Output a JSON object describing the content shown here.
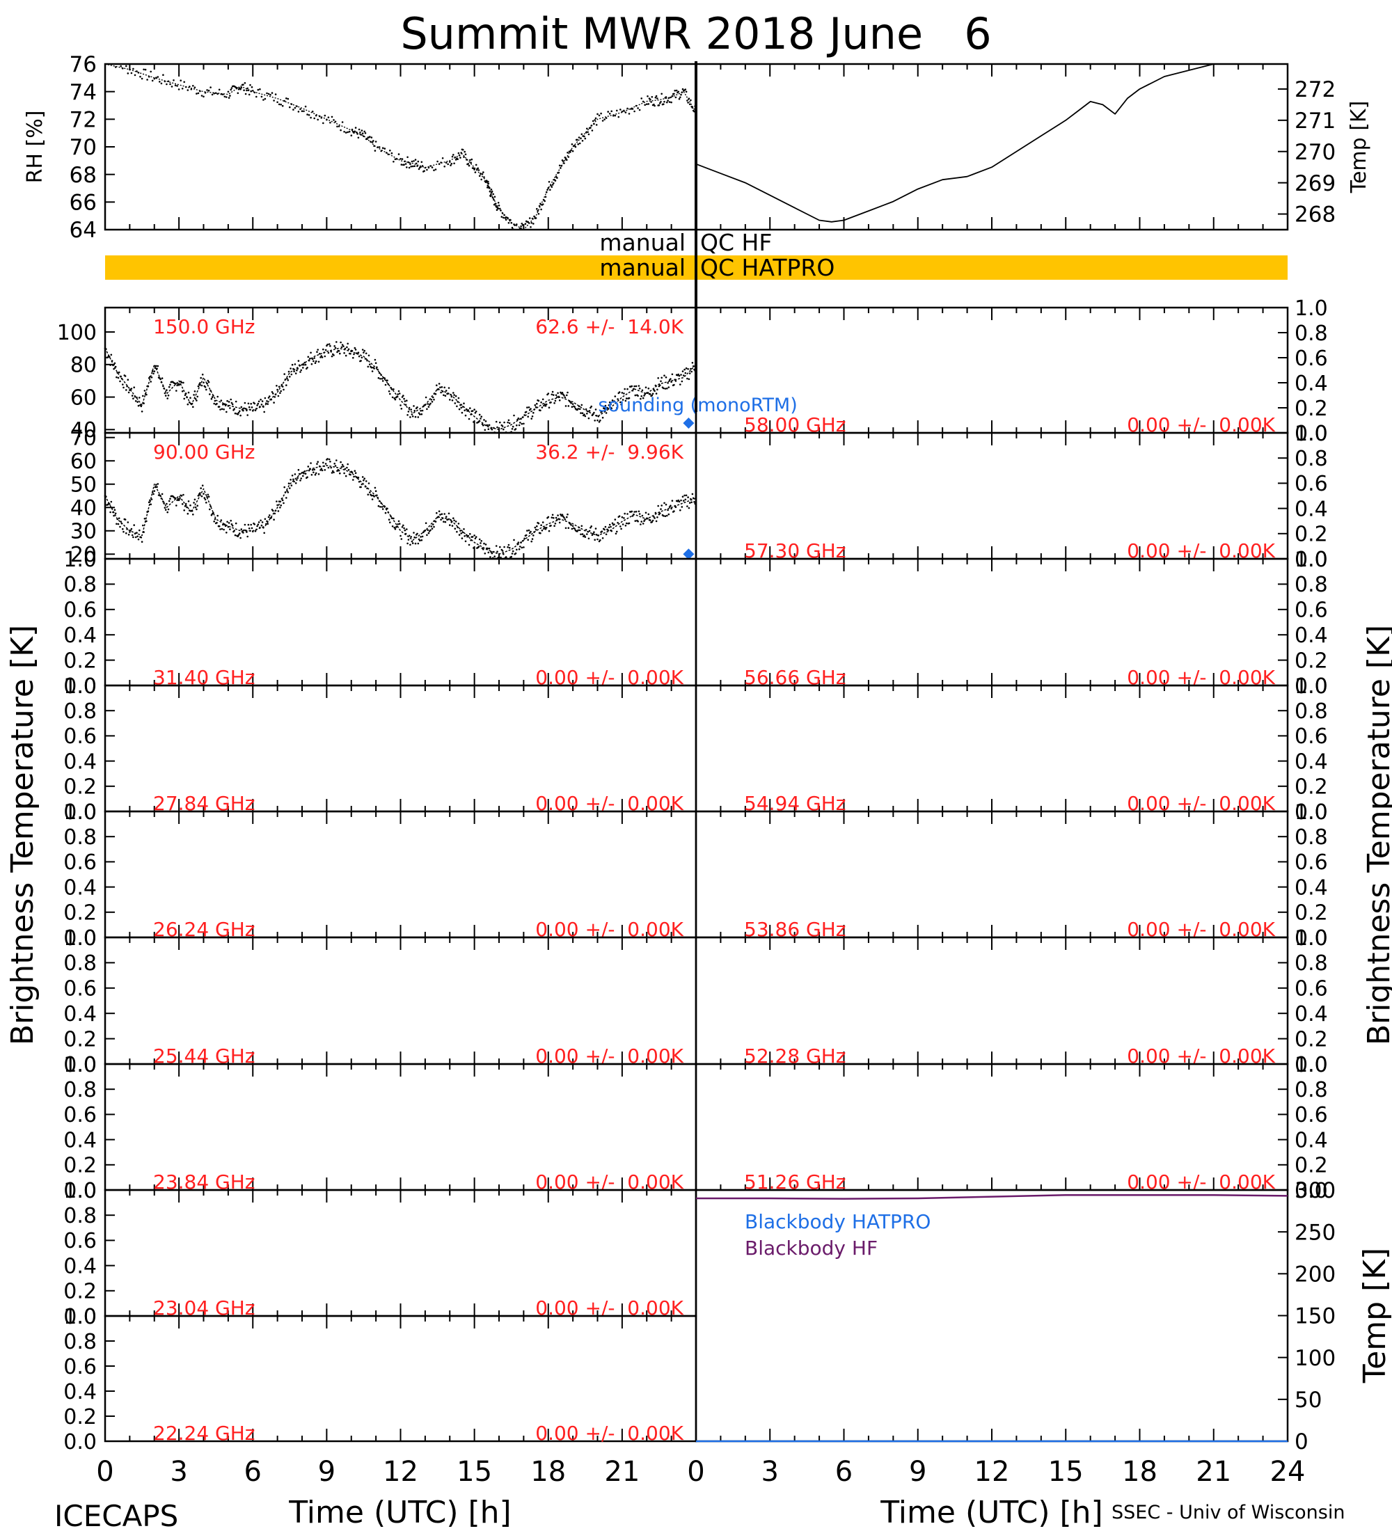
{
  "title": "Summit MWR 2018 June   6",
  "footer": {
    "left_label": "ICECAPS",
    "right_label": "SSEC - Univ of Wisconsin"
  },
  "time_axis": {
    "label": "Time (UTC) [h]",
    "range": [
      0,
      24
    ],
    "ticks": [
      "0",
      "3",
      "6",
      "9",
      "12",
      "15",
      "18",
      "21",
      "24"
    ],
    "left_ticks": [
      "0",
      "3",
      "6",
      "9",
      "12",
      "15",
      "18",
      "21"
    ]
  },
  "qc": {
    "hf_label": "manual QC HF",
    "hf_left": "manual",
    "hf_right": "QC HF",
    "hatpro_label": "manual QC HATPRO",
    "hatpro_left": "manual",
    "hatpro_right": "QC HATPRO",
    "hatpro_color": "#FFC400"
  },
  "colors": {
    "red_label": "#FF2020",
    "sounding": "#1E6FE6",
    "blackbody_hatpro": "#1E6FE6",
    "blackbody_hf": "#6A1B6A",
    "data": "#000000"
  },
  "side_labels": {
    "tb_left": "Brightness Temperature [K]",
    "tb_right": "Brightness Temperature [K]"
  },
  "chart_data": [
    {
      "type": "scatter",
      "panel": "rh",
      "ylabel": "RH [%]",
      "ylim": [
        64,
        76
      ],
      "yticks": [
        "64",
        "66",
        "68",
        "70",
        "72",
        "74",
        "76"
      ],
      "x": [
        0,
        1,
        2,
        3,
        4,
        5,
        5.5,
        6,
        7,
        8,
        9,
        10,
        10.5,
        11,
        12,
        12.5,
        13,
        14,
        14.5,
        15,
        15.5,
        15.7,
        16,
        16.5,
        17,
        17.5,
        18,
        18.5,
        19,
        19.5,
        20,
        21,
        22,
        22.5,
        23,
        23.5,
        24
      ],
      "y": [
        76.5,
        75.6,
        75.0,
        74.5,
        74.0,
        73.8,
        74.4,
        74.0,
        73.5,
        72.8,
        72.0,
        71.2,
        70.8,
        70.0,
        69.0,
        68.8,
        68.5,
        69.0,
        69.5,
        68.5,
        67.5,
        66.5,
        65.5,
        64.5,
        64.0,
        65.0,
        67.0,
        68.5,
        70.0,
        71.0,
        72.0,
        72.5,
        73.3,
        73.4,
        73.6,
        74.0,
        72.5
      ]
    },
    {
      "type": "line",
      "panel": "temp",
      "ylabel": "Temp [K]",
      "ylim": [
        267.5,
        272.8
      ],
      "yticks": [
        "268",
        "269",
        "270",
        "271",
        "272"
      ],
      "x": [
        0,
        1,
        2,
        3,
        4,
        5,
        5.5,
        6,
        7,
        8,
        9,
        10,
        11,
        12,
        13,
        14,
        15,
        15.5,
        16,
        16.5,
        17,
        17.5,
        18,
        19,
        20,
        21,
        22,
        23,
        24
      ],
      "y": [
        269.6,
        269.3,
        269.0,
        268.6,
        268.2,
        267.8,
        267.75,
        267.8,
        268.1,
        268.4,
        268.8,
        269.1,
        269.2,
        269.5,
        270.0,
        270.5,
        271.0,
        271.3,
        271.6,
        271.5,
        271.2,
        271.7,
        272.0,
        272.4,
        272.6,
        272.8,
        272.9,
        272.8,
        272.8
      ]
    },
    {
      "type": "scatter",
      "panel": "tb",
      "column": "left",
      "frequency": "150.0 GHz",
      "stat": "62.6 +/-  14.0K",
      "ylim": [
        38,
        115
      ],
      "yticks": [
        "40",
        "60",
        "80",
        "100"
      ],
      "sounding_label": "sounding (monoRTM)",
      "sounding_value": 44,
      "x": [
        0,
        0.5,
        1,
        1.5,
        2,
        2.5,
        3,
        3.5,
        4,
        4.5,
        5,
        5.5,
        6,
        6.5,
        7,
        7.5,
        8,
        8.5,
        9,
        9.5,
        10,
        10.5,
        11,
        11.5,
        12,
        12.5,
        13,
        13.5,
        14,
        14.5,
        15,
        15.5,
        16,
        16.5,
        17,
        17.5,
        18,
        18.5,
        19,
        19.5,
        20,
        20.5,
        21,
        21.5,
        22,
        22.5,
        23,
        23.5,
        24
      ],
      "values": [
        90,
        75,
        65,
        55,
        80,
        62,
        70,
        55,
        72,
        58,
        55,
        53,
        52,
        55,
        63,
        75,
        80,
        85,
        88,
        90,
        88,
        85,
        78,
        68,
        58,
        50,
        55,
        65,
        62,
        55,
        48,
        42,
        40,
        43,
        48,
        53,
        58,
        60,
        57,
        52,
        48,
        53,
        60,
        65,
        62,
        68,
        70,
        72,
        80
      ]
    },
    {
      "type": "scatter",
      "panel": "tb",
      "column": "left",
      "frequency": "90.00 GHz",
      "stat": "36.2 +/-  9.96K",
      "ylim": [
        18,
        72
      ],
      "yticks": [
        "20",
        "30",
        "40",
        "50",
        "60",
        "70"
      ],
      "sounding_value": 20,
      "x": [
        0,
        0.5,
        1,
        1.5,
        2,
        2.5,
        3,
        3.5,
        4,
        4.5,
        5,
        5.5,
        6,
        6.5,
        7,
        7.5,
        8,
        8.5,
        9,
        9.5,
        10,
        10.5,
        11,
        11.5,
        12,
        12.5,
        13,
        13.5,
        14,
        14.5,
        15,
        15.5,
        16,
        16.5,
        17,
        17.5,
        18,
        18.5,
        19,
        19.5,
        20,
        20.5,
        21,
        21.5,
        22,
        22.5,
        23,
        23.5,
        24
      ],
      "values": [
        45,
        35,
        30,
        28,
        50,
        40,
        45,
        38,
        48,
        35,
        32,
        30,
        30,
        32,
        40,
        50,
        55,
        57,
        58,
        57,
        55,
        50,
        45,
        38,
        30,
        26,
        30,
        36,
        35,
        30,
        25,
        22,
        20,
        22,
        26,
        30,
        33,
        35,
        33,
        30,
        28,
        30,
        34,
        37,
        35,
        38,
        40,
        42,
        44
      ]
    },
    {
      "type": "scatter",
      "panel": "tb",
      "column": "left",
      "frequency": "31.40 GHz",
      "stat": "0.00 +/-  0.00K",
      "ylim": [
        0,
        1
      ],
      "yticks": [
        "0.0",
        "0.2",
        "0.4",
        "0.6",
        "0.8",
        "1.0"
      ],
      "values": []
    },
    {
      "type": "scatter",
      "panel": "tb",
      "column": "left",
      "frequency": "27.84 GHz",
      "stat": "0.00 +/-  0.00K",
      "ylim": [
        0,
        1
      ],
      "yticks": [
        "0.0",
        "0.2",
        "0.4",
        "0.6",
        "0.8",
        "1.0"
      ],
      "values": []
    },
    {
      "type": "scatter",
      "panel": "tb",
      "column": "left",
      "frequency": "26.24 GHz",
      "stat": "0.00 +/-  0.00K",
      "ylim": [
        0,
        1
      ],
      "yticks": [
        "0.0",
        "0.2",
        "0.4",
        "0.6",
        "0.8",
        "1.0"
      ],
      "values": []
    },
    {
      "type": "scatter",
      "panel": "tb",
      "column": "left",
      "frequency": "25.44 GHz",
      "stat": "0.00 +/-  0.00K",
      "ylim": [
        0,
        1
      ],
      "yticks": [
        "0.0",
        "0.2",
        "0.4",
        "0.6",
        "0.8",
        "1.0"
      ],
      "values": []
    },
    {
      "type": "scatter",
      "panel": "tb",
      "column": "left",
      "frequency": "23.84 GHz",
      "stat": "0.00 +/-  0.00K",
      "ylim": [
        0,
        1
      ],
      "yticks": [
        "0.0",
        "0.2",
        "0.4",
        "0.6",
        "0.8",
        "1.0"
      ],
      "values": []
    },
    {
      "type": "scatter",
      "panel": "tb",
      "column": "left",
      "frequency": "23.04 GHz",
      "stat": "0.00 +/-  0.00K",
      "ylim": [
        0,
        1
      ],
      "yticks": [
        "0.0",
        "0.2",
        "0.4",
        "0.6",
        "0.8",
        "1.0"
      ],
      "values": []
    },
    {
      "type": "scatter",
      "panel": "tb",
      "column": "left",
      "frequency": "22.24 GHz",
      "stat": "0.00 +/-  0.00K",
      "ylim": [
        0,
        1
      ],
      "yticks": [
        "0.0",
        "0.2",
        "0.4",
        "0.6",
        "0.8",
        "1.0"
      ],
      "values": []
    },
    {
      "type": "scatter",
      "panel": "tb",
      "column": "right",
      "frequency": "58.00 GHz",
      "stat": "0.00 +/-  0.00K",
      "ylim": [
        0,
        1
      ],
      "yticks": [
        "0.0",
        "0.2",
        "0.4",
        "0.6",
        "0.8",
        "1.0"
      ],
      "values": []
    },
    {
      "type": "scatter",
      "panel": "tb",
      "column": "right",
      "frequency": "57.30 GHz",
      "stat": "0.00 +/-  0.00K",
      "ylim": [
        0,
        1
      ],
      "yticks": [
        "0.0",
        "0.2",
        "0.4",
        "0.6",
        "0.8",
        "1.0"
      ],
      "values": []
    },
    {
      "type": "scatter",
      "panel": "tb",
      "column": "right",
      "frequency": "56.66 GHz",
      "stat": "0.00 +/-  0.00K",
      "ylim": [
        0,
        1
      ],
      "yticks": [
        "0.0",
        "0.2",
        "0.4",
        "0.6",
        "0.8",
        "1.0"
      ],
      "values": []
    },
    {
      "type": "scatter",
      "panel": "tb",
      "column": "right",
      "frequency": "54.94 GHz",
      "stat": "0.00 +/-  0.00K",
      "ylim": [
        0,
        1
      ],
      "yticks": [
        "0.0",
        "0.2",
        "0.4",
        "0.6",
        "0.8",
        "1.0"
      ],
      "values": []
    },
    {
      "type": "scatter",
      "panel": "tb",
      "column": "right",
      "frequency": "53.86 GHz",
      "stat": "0.00 +/-  0.00K",
      "ylim": [
        0,
        1
      ],
      "yticks": [
        "0.0",
        "0.2",
        "0.4",
        "0.6",
        "0.8",
        "1.0"
      ],
      "values": []
    },
    {
      "type": "scatter",
      "panel": "tb",
      "column": "right",
      "frequency": "52.28 GHz",
      "stat": "0.00 +/-  0.00K",
      "ylim": [
        0,
        1
      ],
      "yticks": [
        "0.0",
        "0.2",
        "0.4",
        "0.6",
        "0.8",
        "1.0"
      ],
      "values": []
    },
    {
      "type": "scatter",
      "panel": "tb",
      "column": "right",
      "frequency": "51.26 GHz",
      "stat": "0.00 +/-  0.00K",
      "ylim": [
        0,
        1
      ],
      "yticks": [
        "0.0",
        "0.2",
        "0.4",
        "0.6",
        "0.8",
        "1.0"
      ],
      "values": []
    },
    {
      "type": "line",
      "panel": "blackbody",
      "ylabel": "Temp [K]",
      "ylim": [
        0,
        300
      ],
      "yticks": [
        "0",
        "50",
        "100",
        "150",
        "200",
        "250",
        "300"
      ],
      "series": [
        {
          "name": "Blackbody HATPRO",
          "x": [
            0,
            24
          ],
          "values": [
            0,
            0
          ]
        },
        {
          "name": "Blackbody HF",
          "x": [
            0,
            3,
            6,
            9,
            12,
            15,
            18,
            21,
            24
          ],
          "values": [
            290,
            290,
            289.5,
            290,
            292,
            294,
            294,
            294,
            293
          ]
        }
      ]
    }
  ]
}
